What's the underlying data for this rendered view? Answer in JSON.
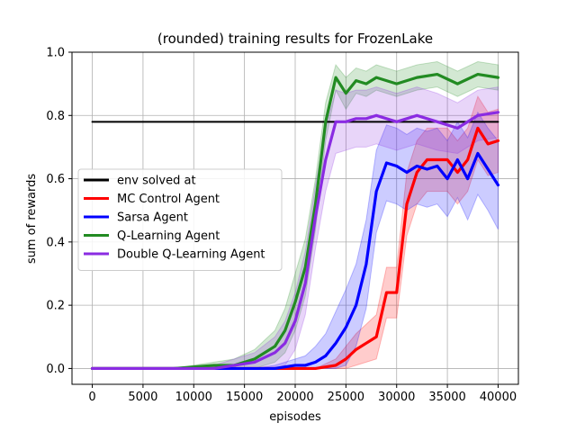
{
  "chart_data": {
    "type": "line",
    "title": "(rounded) training results for FrozenLake",
    "xlabel": "episodes",
    "ylabel": "sum of rewards",
    "xlim": [
      -2000,
      42000
    ],
    "ylim": [
      -0.05,
      1.0
    ],
    "xticks": [
      0,
      5000,
      10000,
      15000,
      20000,
      25000,
      30000,
      35000,
      40000
    ],
    "yticks": [
      0.0,
      0.2,
      0.4,
      0.6,
      0.8,
      1.0
    ],
    "xtick_labels": [
      "0",
      "5000",
      "10000",
      "15000",
      "20000",
      "25000",
      "30000",
      "35000",
      "40000"
    ],
    "ytick_labels": [
      "0.0",
      "0.2",
      "0.4",
      "0.6",
      "0.8",
      "1.0"
    ],
    "grid": true,
    "legend_position": "center-left",
    "series": [
      {
        "name": "env solved at",
        "color": "#000000",
        "x": [
          0,
          40000
        ],
        "y": [
          0.78,
          0.78
        ],
        "band": null
      },
      {
        "name": "MC Control Agent",
        "color": "#ff0000",
        "x": [
          0,
          10000,
          16000,
          20000,
          22000,
          24000,
          25000,
          26000,
          27000,
          28000,
          29000,
          30000,
          31000,
          32000,
          33000,
          34000,
          35000,
          36000,
          37000,
          38000,
          39000,
          40000
        ],
        "y": [
          0.0,
          0.0,
          0.0,
          0.0,
          0.0,
          0.01,
          0.03,
          0.06,
          0.08,
          0.1,
          0.24,
          0.24,
          0.52,
          0.62,
          0.66,
          0.66,
          0.66,
          0.62,
          0.66,
          0.76,
          0.71,
          0.72
        ],
        "band": [
          0.0,
          0.0,
          0.0,
          0.0,
          0.0,
          0.02,
          0.04,
          0.05,
          0.06,
          0.07,
          0.08,
          0.08,
          0.1,
          0.1,
          0.1,
          0.1,
          0.1,
          0.1,
          0.1,
          0.1,
          0.1,
          0.1
        ]
      },
      {
        "name": "Sarsa Agent",
        "color": "#0000ff",
        "x": [
          0,
          10000,
          16000,
          18000,
          20000,
          21000,
          22000,
          23000,
          24000,
          25000,
          26000,
          27000,
          28000,
          29000,
          30000,
          31000,
          32000,
          33000,
          34000,
          35000,
          36000,
          37000,
          38000,
          39000,
          40000
        ],
        "y": [
          0.0,
          0.0,
          0.0,
          0.0,
          0.01,
          0.01,
          0.02,
          0.04,
          0.08,
          0.13,
          0.2,
          0.33,
          0.56,
          0.65,
          0.64,
          0.62,
          0.64,
          0.63,
          0.64,
          0.6,
          0.66,
          0.6,
          0.68,
          0.63,
          0.58
        ],
        "band": [
          0.0,
          0.0,
          0.0,
          0.01,
          0.02,
          0.03,
          0.05,
          0.07,
          0.1,
          0.12,
          0.13,
          0.14,
          0.13,
          0.12,
          0.12,
          0.12,
          0.12,
          0.12,
          0.12,
          0.12,
          0.12,
          0.13,
          0.13,
          0.13,
          0.14
        ]
      },
      {
        "name": "Q-Learning Agent",
        "color": "#228b22",
        "x": [
          0,
          8000,
          12000,
          14000,
          16000,
          18000,
          19000,
          20000,
          21000,
          22000,
          23000,
          24000,
          25000,
          26000,
          27000,
          28000,
          30000,
          32000,
          34000,
          36000,
          38000,
          40000
        ],
        "y": [
          0.0,
          0.0,
          0.01,
          0.01,
          0.03,
          0.07,
          0.12,
          0.21,
          0.32,
          0.52,
          0.78,
          0.92,
          0.87,
          0.91,
          0.9,
          0.92,
          0.9,
          0.92,
          0.93,
          0.9,
          0.93,
          0.92
        ],
        "band": [
          0.0,
          0.0,
          0.01,
          0.02,
          0.03,
          0.05,
          0.07,
          0.09,
          0.09,
          0.08,
          0.06,
          0.04,
          0.05,
          0.04,
          0.04,
          0.04,
          0.04,
          0.04,
          0.04,
          0.04,
          0.04,
          0.04
        ]
      },
      {
        "name": "Double Q-Learning Agent",
        "color": "#8a2be2",
        "x": [
          0,
          8000,
          12000,
          14000,
          16000,
          18000,
          19000,
          20000,
          21000,
          22000,
          23000,
          24000,
          25000,
          26000,
          27000,
          28000,
          30000,
          32000,
          34000,
          36000,
          38000,
          40000
        ],
        "y": [
          0.0,
          0.0,
          0.0,
          0.01,
          0.02,
          0.05,
          0.08,
          0.15,
          0.27,
          0.48,
          0.66,
          0.78,
          0.78,
          0.79,
          0.79,
          0.8,
          0.78,
          0.8,
          0.78,
          0.76,
          0.8,
          0.81
        ],
        "band": [
          0.0,
          0.0,
          0.01,
          0.02,
          0.03,
          0.05,
          0.07,
          0.09,
          0.1,
          0.1,
          0.1,
          0.1,
          0.09,
          0.09,
          0.09,
          0.09,
          0.09,
          0.09,
          0.09,
          0.08,
          0.08,
          0.08
        ]
      }
    ]
  }
}
